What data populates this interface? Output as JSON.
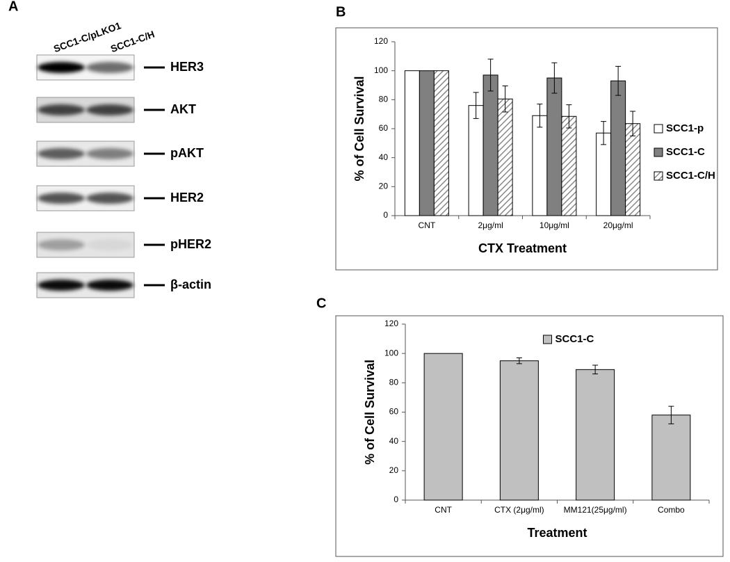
{
  "panel_labels": [
    "A",
    "B",
    "C"
  ],
  "blot": {
    "lanes": [
      "SCC1-C/pLKO1",
      "SCC1-C/H"
    ],
    "proteins": [
      "HER3",
      "AKT",
      "pAKT",
      "HER2",
      "pHER2",
      "β-actin"
    ]
  },
  "chart_data": [
    {
      "type": "bar",
      "x_label": "CTX Treatment",
      "y_label": "% of Cell Survival",
      "categories": [
        "CNT",
        "2μg/ml",
        "10μg/ml",
        "20μg/ml"
      ],
      "series": [
        {
          "name": "SCC1-p",
          "color": "#ffffff",
          "values": [
            100,
            76,
            69,
            57
          ],
          "errors": [
            null,
            9,
            8,
            8
          ]
        },
        {
          "name": "SCC1-C",
          "color": "#808080",
          "values": [
            100,
            97,
            95,
            93
          ],
          "errors": [
            null,
            11,
            10.5,
            10
          ]
        },
        {
          "name": "SCC1-C/H",
          "color": "#ffffff",
          "pattern": "diagonal",
          "values": [
            100,
            80.5,
            68.5,
            63.5
          ],
          "errors": [
            null,
            9,
            8,
            8.5
          ]
        }
      ],
      "ylim": [
        0,
        120
      ],
      "yticks": [
        0,
        20,
        40,
        60,
        80,
        100,
        120
      ],
      "legend": "right"
    },
    {
      "type": "bar",
      "x_label": "Treatment",
      "y_label": "% of Cell Survival",
      "categories": [
        "CNT",
        "CTX (2μg/ml)",
        "MM121(25μg/ml)",
        "Combo"
      ],
      "series": [
        {
          "name": "SCC1-C",
          "color": "#c0c0c0",
          "values": [
            100,
            95,
            89,
            58
          ],
          "errors": [
            null,
            2,
            3,
            6
          ]
        }
      ],
      "ylim": [
        0,
        120
      ],
      "yticks": [
        0,
        20,
        40,
        60,
        80,
        100,
        120
      ],
      "legend": "top"
    }
  ]
}
